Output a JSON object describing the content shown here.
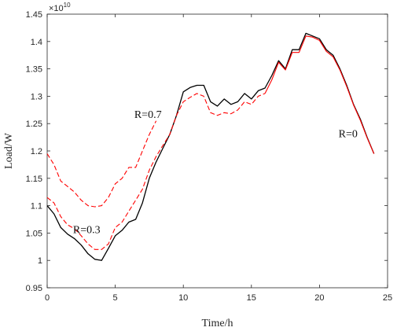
{
  "chart_data": {
    "type": "line",
    "title": "",
    "xlabel": "Time/h",
    "ylabel": "Load/W",
    "y_multiplier_label": "×10",
    "y_multiplier_exponent": "10",
    "xlim": [
      0,
      25
    ],
    "ylim": [
      0.95,
      1.45
    ],
    "x_ticks": [
      0,
      5,
      10,
      15,
      20,
      25
    ],
    "y_ticks": [
      0.95,
      1,
      1.05,
      1.1,
      1.15,
      1.2,
      1.25,
      1.3,
      1.35,
      1.4,
      1.45
    ],
    "x_tick_labels": [
      "0",
      "5",
      "10",
      "15",
      "20",
      "25"
    ],
    "y_tick_labels": [
      "0.95",
      "1",
      "1.05",
      "1.1",
      "1.15",
      "1.2",
      "1.25",
      "1.3",
      "1.35",
      "1.4",
      "1.45"
    ],
    "grid": false,
    "series": [
      {
        "style": "solid",
        "color": "#000000",
        "x": [
          0,
          0.5,
          1,
          1.5,
          2,
          2.5,
          3,
          3.5,
          4,
          4.5,
          5,
          5.5,
          6,
          6.5,
          7,
          7.5,
          8,
          8.5,
          9,
          9.5,
          10,
          10.5,
          11,
          11.5,
          12,
          12.5,
          13,
          13.5,
          14,
          14.5,
          15,
          15.5,
          16,
          16.5,
          17,
          17.5,
          18,
          18.5,
          19,
          19.5,
          20,
          20.5,
          21,
          21.5,
          22,
          22.5,
          23,
          23.5,
          24
        ],
        "y": [
          1.1,
          1.085,
          1.06,
          1.048,
          1.04,
          1.028,
          1.012,
          1.002,
          1.0,
          1.022,
          1.045,
          1.055,
          1.07,
          1.075,
          1.105,
          1.15,
          1.18,
          1.205,
          1.23,
          1.265,
          1.308,
          1.316,
          1.32,
          1.32,
          1.29,
          1.282,
          1.295,
          1.285,
          1.29,
          1.305,
          1.295,
          1.31,
          1.315,
          1.338,
          1.365,
          1.35,
          1.385,
          1.385,
          1.415,
          1.41,
          1.405,
          1.385,
          1.375,
          1.35,
          1.32,
          1.285,
          1.258,
          1.225,
          1.195
        ]
      },
      {
        "style": "dashed",
        "color": "#ff0000",
        "x": [
          0,
          0.5,
          1,
          1.5,
          2,
          2.5,
          3,
          3.5,
          4,
          4.5,
          5,
          5.5,
          6,
          6.5,
          7,
          7.5,
          8,
          8.5,
          9,
          9.5,
          10,
          10.5,
          11,
          11.5,
          12,
          12.5,
          13,
          13.5,
          14,
          14.5,
          15,
          15.5,
          16
        ],
        "y": [
          1.115,
          1.105,
          1.08,
          1.065,
          1.058,
          1.045,
          1.03,
          1.02,
          1.02,
          1.03,
          1.06,
          1.07,
          1.09,
          1.11,
          1.13,
          1.165,
          1.19,
          1.21,
          1.23,
          1.265,
          1.29,
          1.298,
          1.305,
          1.3,
          1.27,
          1.265,
          1.27,
          1.268,
          1.275,
          1.29,
          1.285,
          1.3,
          1.305
        ]
      },
      {
        "style": "dashed",
        "color": "#ff0000",
        "x": [
          0,
          0.5,
          1,
          1.5,
          2,
          2.5,
          3,
          3.5,
          4,
          4.5,
          5,
          5.5,
          6,
          6.5,
          7,
          7.5,
          8
        ],
        "y": [
          1.195,
          1.175,
          1.145,
          1.135,
          1.125,
          1.11,
          1.1,
          1.098,
          1.1,
          1.115,
          1.14,
          1.15,
          1.17,
          1.17,
          1.2,
          1.23,
          1.255
        ]
      },
      {
        "style": "solid",
        "color": "#ff0000",
        "x": [
          16,
          16.5,
          17,
          17.5,
          18,
          18.5,
          19,
          19.5,
          20,
          20.5,
          21,
          21.5,
          22,
          22.5,
          23,
          23.5,
          24
        ],
        "y": [
          1.305,
          1.33,
          1.362,
          1.348,
          1.38,
          1.38,
          1.41,
          1.408,
          1.402,
          1.382,
          1.372,
          1.348,
          1.318,
          1.284,
          1.256,
          1.224,
          1.195
        ]
      }
    ],
    "annotations": [
      {
        "text": "R=0.7",
        "x": 6.4,
        "y": 1.26
      },
      {
        "text": "R=0.3",
        "x": 1.9,
        "y": 1.05
      },
      {
        "text": "R=0",
        "x": 21.4,
        "y": 1.225
      }
    ]
  }
}
